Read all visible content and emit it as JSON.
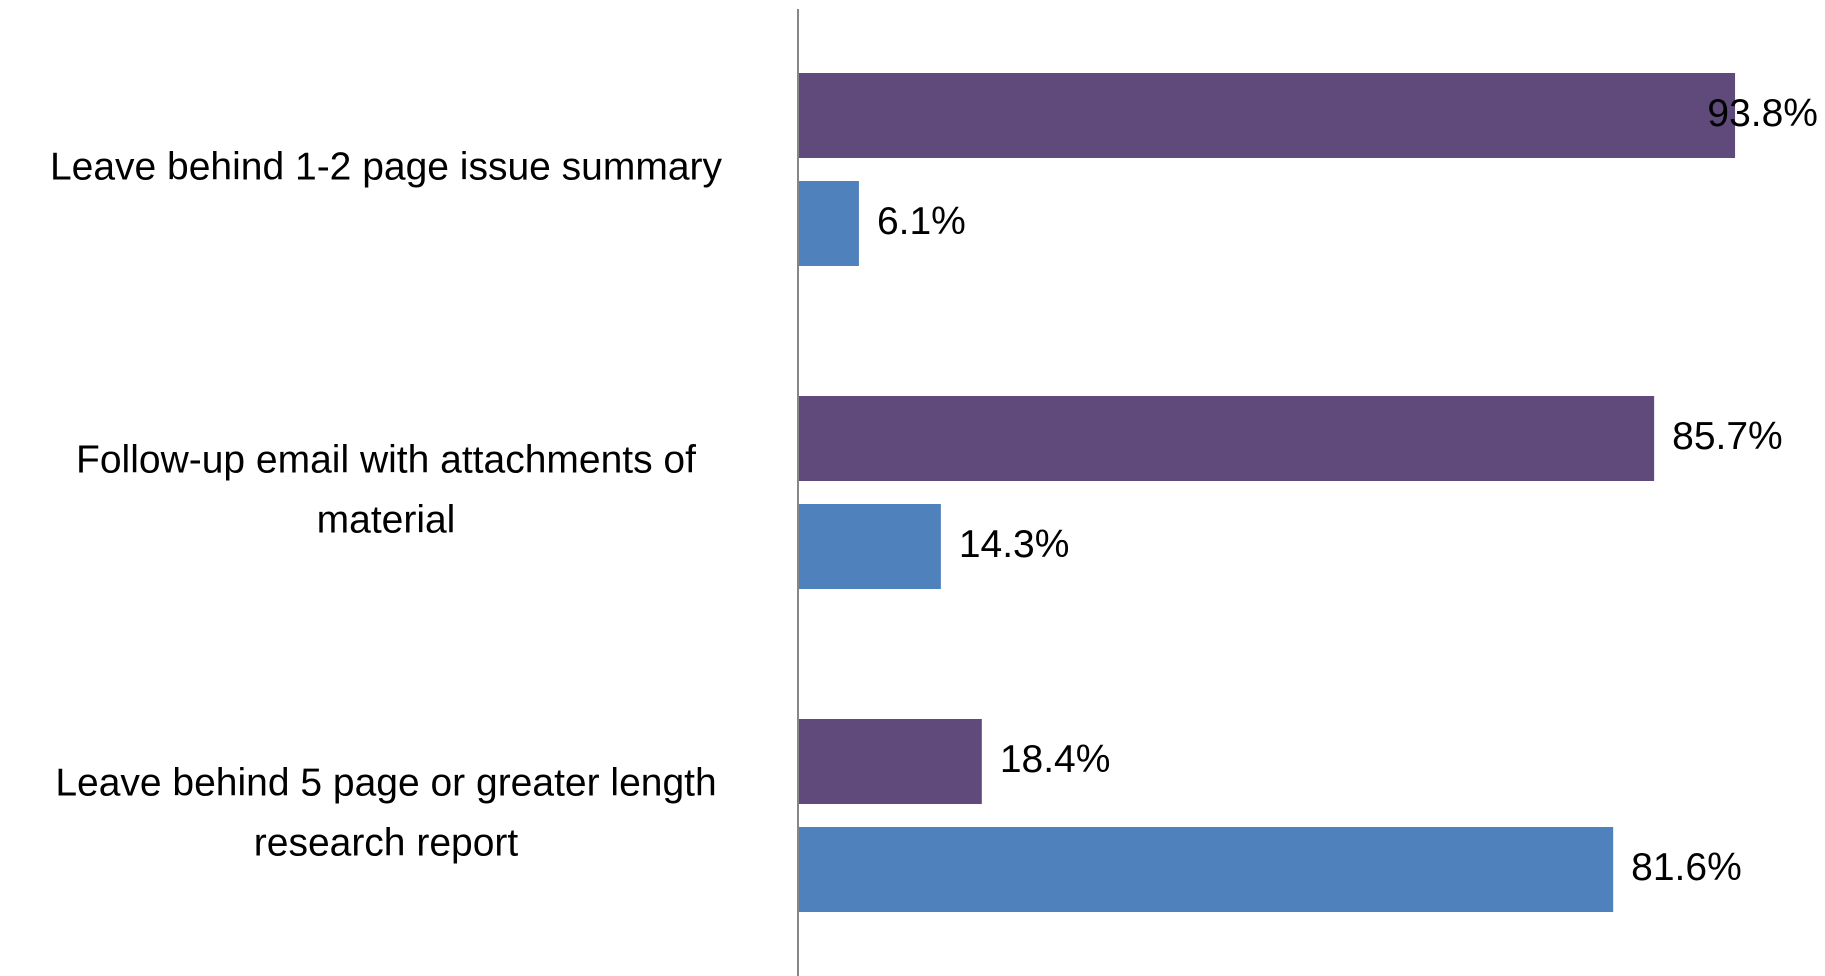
{
  "chart_data": {
    "type": "hbar",
    "categories": [
      "Leave behind 1-2 page issue summary",
      "Follow-up email with attachments of material",
      "Leave behind 5 page or greater length research report"
    ],
    "series": [
      {
        "color": "#604a7b",
        "values": [
          93.8,
          85.7,
          18.4
        ],
        "value_labels": [
          "93.8%",
          "85.7%",
          "18.4%"
        ]
      },
      {
        "color": "#4f81bd",
        "values": [
          6.1,
          14.3,
          81.6
        ],
        "value_labels": [
          "6.1%",
          "14.3%",
          "81.6%"
        ]
      }
    ],
    "xlim": [
      0,
      100
    ]
  }
}
